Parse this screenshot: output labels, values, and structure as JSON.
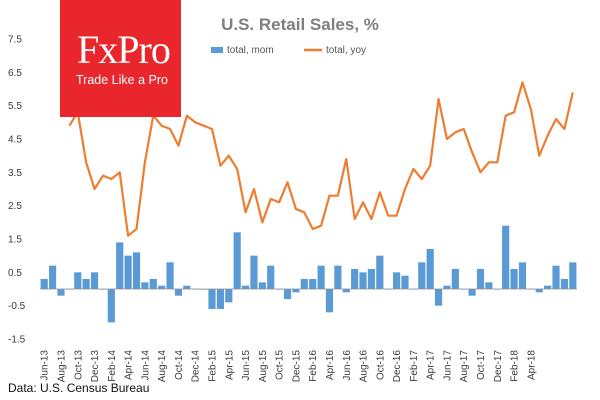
{
  "logo": {
    "brand": "FxPro",
    "tagline": "Trade Like a Pro"
  },
  "source": "Data: U.S. Census Bureau",
  "colors": {
    "mom": "#5b9bd5",
    "yoy": "#ed7d31",
    "logo_bg": "#e8262b"
  },
  "chart_data": {
    "type": "bar+line",
    "title": "U.S. Retail Sales, %",
    "ylim": [
      -1.5,
      7.5
    ],
    "yticks": [
      7.5,
      6.5,
      5.5,
      4.5,
      3.5,
      2.5,
      1.5,
      0.5,
      -0.5,
      -1.5
    ],
    "x_tick_labels": [
      "Jun-13",
      "Aug-13",
      "Oct-13",
      "Dec-13",
      "Feb-14",
      "Apr-14",
      "Jun-14",
      "Aug-14",
      "Oct-14",
      "Dec-14",
      "Feb-15",
      "Apr-15",
      "Jun-15",
      "Aug-15",
      "Oct-15",
      "Dec-15",
      "Feb-16",
      "Apr-16",
      "Jun-16",
      "Aug-16",
      "Oct-16",
      "Dec-16",
      "Feb-17",
      "Apr-17",
      "Jun-17",
      "Aug-17",
      "Oct-17",
      "Dec-17",
      "Feb-18",
      "Apr-18"
    ],
    "series": [
      {
        "name": "total, mom",
        "kind": "bar",
        "values": [
          0.3,
          0.7,
          -0.2,
          0.0,
          0.5,
          0.3,
          0.5,
          0.0,
          -1.0,
          1.4,
          1.0,
          1.1,
          0.2,
          0.3,
          0.1,
          0.8,
          -0.2,
          0.1,
          0.0,
          0.0,
          -0.6,
          -0.6,
          -0.4,
          1.7,
          0.1,
          1.0,
          0.2,
          0.7,
          0.0,
          -0.3,
          -0.1,
          0.3,
          0.3,
          0.7,
          -0.7,
          0.7,
          -0.1,
          0.6,
          0.5,
          0.6,
          1.0,
          0.0,
          0.5,
          0.4,
          0.0,
          0.8,
          1.2,
          -0.5,
          0.1,
          0.6,
          0.0,
          -0.2,
          0.6,
          0.2,
          0.0,
          1.9,
          0.6,
          0.8,
          0.0,
          -0.1,
          0.1,
          0.7,
          0.3,
          0.8
        ]
      },
      {
        "name": "total, yoy",
        "kind": "line",
        "values": [
          4.9,
          5.3,
          3.8,
          3.0,
          3.4,
          3.3,
          3.5,
          1.6,
          1.8,
          3.8,
          5.2,
          4.9,
          4.8,
          4.3,
          5.2,
          5.0,
          4.9,
          4.8,
          3.7,
          4.0,
          3.6,
          2.3,
          3.0,
          2.0,
          2.7,
          2.6,
          3.2,
          2.4,
          2.3,
          1.8,
          1.9,
          2.8,
          2.8,
          3.9,
          2.1,
          2.6,
          2.1,
          2.9,
          2.2,
          2.2,
          3.0,
          3.6,
          3.3,
          3.7,
          5.7,
          4.5,
          4.7,
          4.8,
          4.1,
          3.5,
          3.8,
          3.8,
          5.2,
          5.3,
          6.2,
          5.4,
          4.0,
          4.6,
          5.1,
          4.8,
          5.9
        ]
      }
    ]
  }
}
